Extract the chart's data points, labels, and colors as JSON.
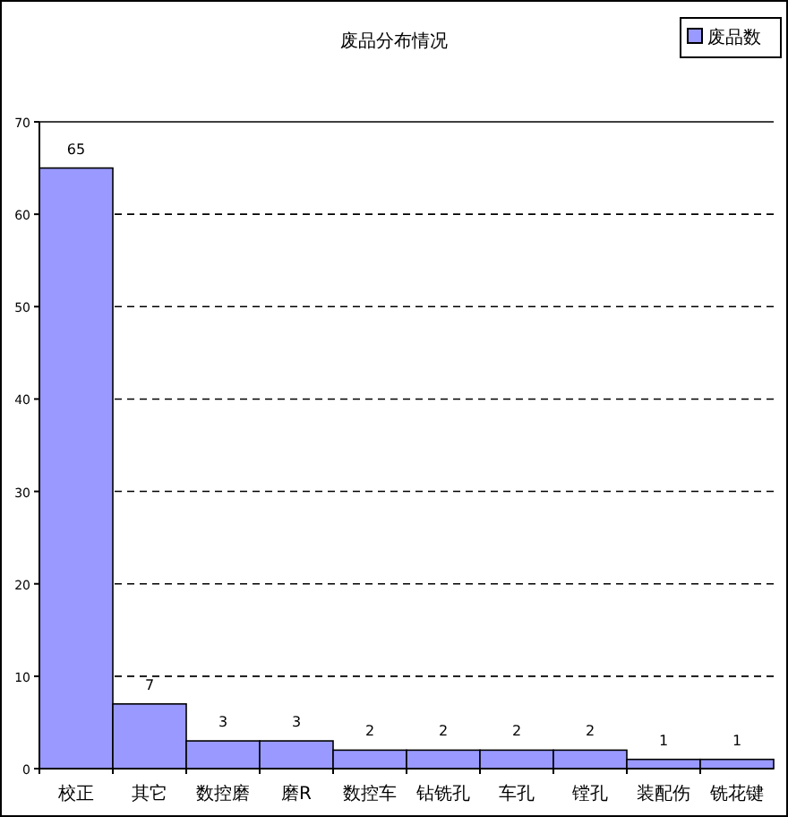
{
  "chart_data": {
    "type": "bar",
    "title": "废品分布情况",
    "categories": [
      "校正",
      "其它",
      "数控磨",
      "磨R",
      "数控车",
      "钻铣孔",
      "车孔",
      "镗孔",
      "装配伤",
      "铣花键"
    ],
    "series": [
      {
        "name": "废品数",
        "color": "#9999ff",
        "values": [
          65,
          7,
          3,
          3,
          2,
          2,
          2,
          2,
          1,
          1
        ]
      }
    ],
    "ylim": [
      0,
      70
    ],
    "yticks": [
      0,
      10,
      20,
      30,
      40,
      50,
      60,
      70
    ],
    "grid": "y",
    "legend": "top right",
    "data_labels": true
  }
}
